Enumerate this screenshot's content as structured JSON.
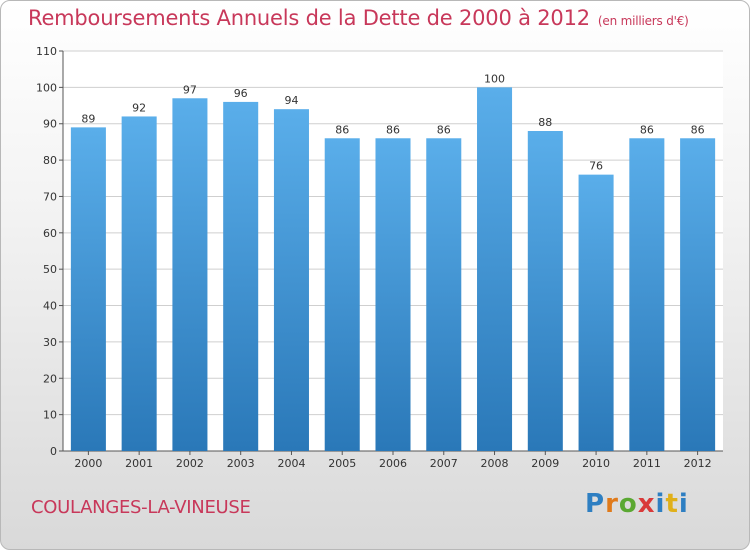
{
  "header": {
    "title": "Remboursements Annuels de la Dette de 2000 à 2012",
    "unit": "(en milliers d'€)"
  },
  "footer": {
    "city": "COULANGES-LA-VINEUSE",
    "logo": "Proxiti"
  },
  "colors": {
    "bar_top": "#5aaeea",
    "bar_bottom": "#2a78b8",
    "grid": "#cfcfcf",
    "title": "#c8385a"
  },
  "chart_data": {
    "type": "bar",
    "title": "Remboursements Annuels de la Dette de 2000 à 2012",
    "xlabel": "",
    "ylabel": "",
    "categories": [
      "2000",
      "2001",
      "2002",
      "2003",
      "2004",
      "2005",
      "2006",
      "2007",
      "2008",
      "2009",
      "2010",
      "2011",
      "2012"
    ],
    "values": [
      89,
      92,
      97,
      96,
      94,
      86,
      86,
      86,
      100,
      88,
      76,
      86,
      86
    ],
    "ylim": [
      0,
      110
    ],
    "yticks": [
      0,
      10,
      20,
      30,
      40,
      50,
      60,
      70,
      80,
      90,
      100,
      110
    ],
    "grid": true,
    "legend": "none"
  }
}
